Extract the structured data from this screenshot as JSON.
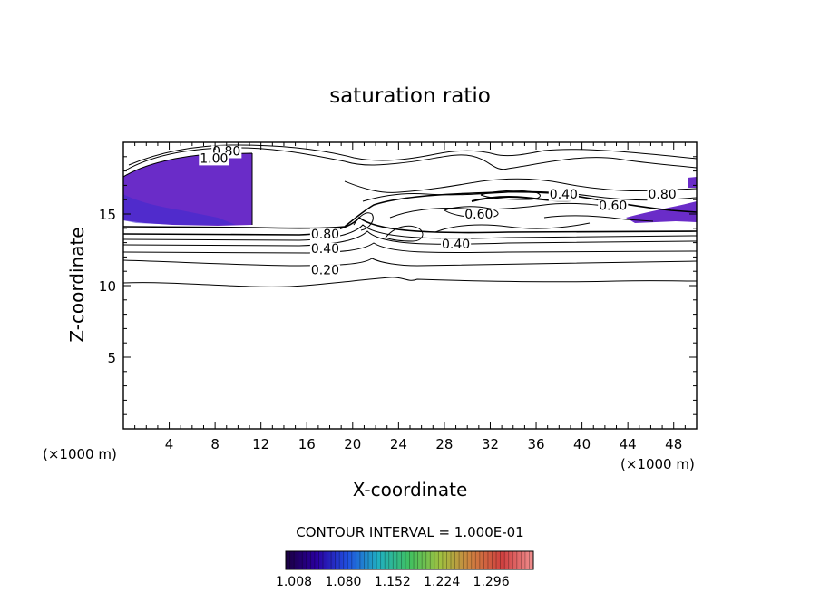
{
  "chart_data": {
    "type": "contour",
    "title": "saturation ratio",
    "xlabel": "X-coordinate",
    "ylabel": "Z-coordinate",
    "x_unit_left": "(×1000 m)",
    "x_unit_right": "(×1000 m)",
    "xlim": [
      0,
      50
    ],
    "ylim": [
      0,
      20
    ],
    "x_ticks": [
      4,
      8,
      12,
      16,
      20,
      24,
      28,
      32,
      36,
      40,
      44,
      48
    ],
    "y_ticks": [
      5,
      10,
      15
    ],
    "x_minor_step": 1,
    "y_minor_step": 1,
    "contour_interval_label": "CONTOUR INTERVAL = 1.000E-01",
    "contour_labels": [
      {
        "text": "0.80",
        "x": 9.0,
        "z": 19.4
      },
      {
        "text": "1.00",
        "x": 7.9,
        "z": 18.9
      },
      {
        "text": "0.80",
        "x": 17.6,
        "z": 13.6
      },
      {
        "text": "0.40",
        "x": 17.6,
        "z": 12.6
      },
      {
        "text": "0.20",
        "x": 17.6,
        "z": 11.1
      },
      {
        "text": "0.40",
        "x": 38.4,
        "z": 16.4
      },
      {
        "text": "0.60",
        "x": 31.0,
        "z": 15.0
      },
      {
        "text": "0.40",
        "x": 29.0,
        "z": 12.9
      },
      {
        "text": "0.60",
        "x": 42.7,
        "z": 15.6
      },
      {
        "text": "0.80",
        "x": 47.0,
        "z": 16.4
      }
    ],
    "colorbar": {
      "labels": [
        "1.008",
        "1.080",
        "1.152",
        "1.224",
        "1.296"
      ],
      "colors": [
        "#1a0040",
        "#2a00a0",
        "#2050e0",
        "#20b0c0",
        "#40c060",
        "#a0c040",
        "#d08040",
        "#d04040",
        "#f09090"
      ]
    },
    "fill_color": "#6a2cc8"
  }
}
